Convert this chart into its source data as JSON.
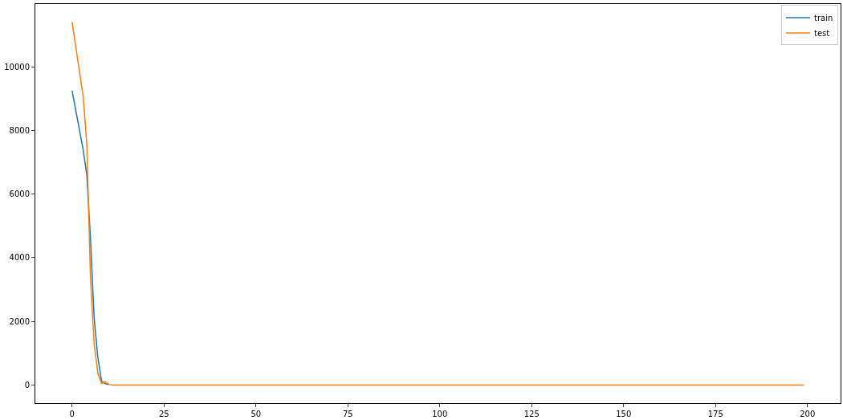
{
  "chart_data": {
    "type": "line",
    "xlim": [
      -10,
      209
    ],
    "xticks": [
      0,
      25,
      50,
      75,
      100,
      125,
      150,
      175,
      200
    ],
    "ylim": [
      -570,
      11970
    ],
    "yticks": [
      0,
      2000,
      4000,
      6000,
      8000,
      10000
    ],
    "legend": "top right",
    "series": [
      {
        "name": "train",
        "color": "#1f77b4",
        "x": [
          0,
          3,
          4,
          5,
          6,
          7,
          8,
          9,
          10
        ],
        "values": [
          9250,
          7400,
          6600,
          4600,
          2100,
          870,
          120,
          40,
          10
        ]
      },
      {
        "name": "test",
        "color": "#ff7f0e",
        "x": [
          0,
          3,
          4,
          5,
          6,
          7,
          8,
          9,
          10,
          11,
          15,
          199
        ],
        "values": [
          11400,
          9080,
          7590,
          3360,
          1290,
          370,
          50,
          100,
          20,
          0,
          0,
          0
        ]
      }
    ]
  }
}
